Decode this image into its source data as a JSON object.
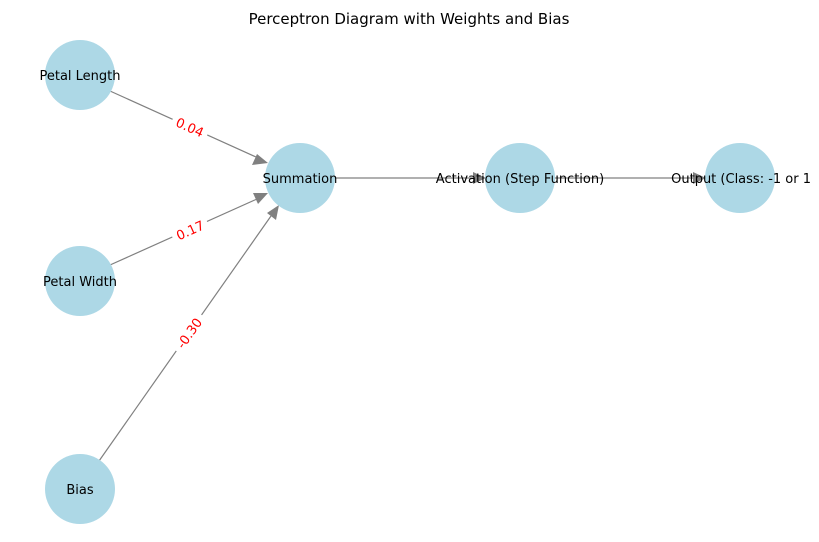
{
  "title": "Perceptron Diagram with Weights and Bias",
  "colors": {
    "node_fill": "#add8e6",
    "edge": "#808080",
    "weight_label": "#ff0000"
  },
  "nodes": {
    "petal_length": {
      "label": "Petal Length"
    },
    "petal_width": {
      "label": "Petal Width"
    },
    "bias": {
      "label": "Bias"
    },
    "summation": {
      "label": "Summation"
    },
    "activation": {
      "label": "Activation (Step Function)"
    },
    "output": {
      "label": "Output (Class: -1 or 1"
    }
  },
  "edges": [
    {
      "from": "Petal Length",
      "to": "Summation",
      "weight": "0.04"
    },
    {
      "from": "Petal Width",
      "to": "Summation",
      "weight": "0.17"
    },
    {
      "from": "Bias",
      "to": "Summation",
      "weight": "-0.30"
    },
    {
      "from": "Summation",
      "to": "Activation (Step Function)",
      "weight": ""
    },
    {
      "from": "Activation (Step Function)",
      "to": "Output (Class: -1 or 1",
      "weight": ""
    }
  ]
}
